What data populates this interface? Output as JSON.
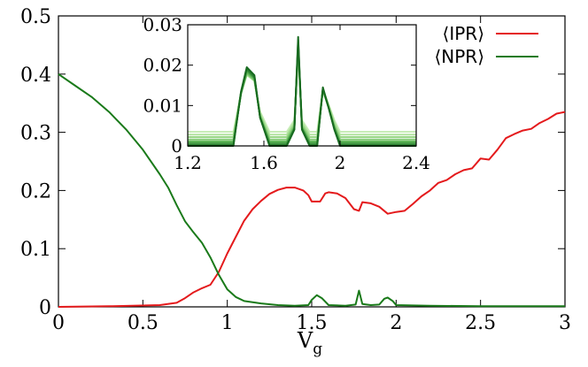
{
  "chart_data": {
    "type": "line",
    "xlabel": "V",
    "xlabel_sub": "g",
    "xlim": [
      0,
      3
    ],
    "ylim": [
      0,
      0.5
    ],
    "xticks": [
      "0",
      "0.5",
      "1",
      "1.5",
      "2",
      "2.5",
      "3"
    ],
    "yticks": [
      "0",
      "0.1",
      "0.2",
      "0.3",
      "0.4",
      "0.5"
    ],
    "legend_position": "top-right",
    "colors": {
      "ipr": "#e41a1c",
      "npr": "#1a7a1a"
    },
    "series": [
      {
        "name": "⟨IPR⟩",
        "color": "#e41a1c",
        "x": [
          0,
          0.3,
          0.6,
          0.7,
          0.75,
          0.8,
          0.85,
          0.9,
          0.95,
          1.0,
          1.05,
          1.1,
          1.15,
          1.2,
          1.25,
          1.3,
          1.35,
          1.4,
          1.45,
          1.48,
          1.5,
          1.55,
          1.58,
          1.6,
          1.65,
          1.7,
          1.75,
          1.78,
          1.8,
          1.85,
          1.9,
          1.95,
          2.0,
          2.05,
          2.1,
          2.15,
          2.2,
          2.25,
          2.3,
          2.35,
          2.4,
          2.45,
          2.5,
          2.55,
          2.6,
          2.65,
          2.7,
          2.75,
          2.8,
          2.85,
          2.9,
          2.95,
          3.0
        ],
        "y": [
          0,
          0.001,
          0.003,
          0.007,
          0.015,
          0.025,
          0.032,
          0.038,
          0.06,
          0.092,
          0.12,
          0.148,
          0.168,
          0.182,
          0.194,
          0.201,
          0.205,
          0.205,
          0.2,
          0.192,
          0.181,
          0.181,
          0.195,
          0.197,
          0.195,
          0.187,
          0.168,
          0.165,
          0.18,
          0.178,
          0.172,
          0.16,
          0.163,
          0.165,
          0.177,
          0.19,
          0.2,
          0.213,
          0.218,
          0.228,
          0.235,
          0.238,
          0.255,
          0.253,
          0.27,
          0.29,
          0.297,
          0.303,
          0.306,
          0.316,
          0.323,
          0.332,
          0.335
        ]
      },
      {
        "name": "⟨NPR⟩",
        "color": "#1a7a1a",
        "x": [
          0,
          0.1,
          0.2,
          0.3,
          0.4,
          0.5,
          0.6,
          0.65,
          0.7,
          0.75,
          0.8,
          0.85,
          0.9,
          0.95,
          1.0,
          1.05,
          1.1,
          1.2,
          1.3,
          1.4,
          1.48,
          1.5,
          1.53,
          1.56,
          1.6,
          1.7,
          1.76,
          1.78,
          1.8,
          1.85,
          1.9,
          1.93,
          1.95,
          1.98,
          2.0,
          2.2,
          2.5,
          3.0
        ],
        "y": [
          0.4,
          0.38,
          0.36,
          0.335,
          0.305,
          0.27,
          0.228,
          0.205,
          0.175,
          0.147,
          0.128,
          0.11,
          0.085,
          0.055,
          0.03,
          0.017,
          0.01,
          0.006,
          0.003,
          0.002,
          0.003,
          0.012,
          0.02,
          0.015,
          0.003,
          0.002,
          0.004,
          0.028,
          0.005,
          0.003,
          0.004,
          0.014,
          0.016,
          0.01,
          0.003,
          0.002,
          0.001,
          0.001
        ]
      }
    ],
    "inset": {
      "type": "line",
      "xlim": [
        1.2,
        2.4
      ],
      "ylim": [
        0,
        0.03
      ],
      "xticks": [
        "1.2",
        "1.6",
        "2",
        "2.4"
      ],
      "yticks": [
        "0",
        "0.01",
        "0.02",
        "0.03"
      ],
      "series_shades": [
        "#c8edb8",
        "#b3e3a0",
        "#9bd889",
        "#80c972",
        "#63b85b",
        "#449d44",
        "#2a8030",
        "#176a1f"
      ],
      "baselines": [
        0.0035,
        0.0028,
        0.0022,
        0.0016,
        0.0011,
        0.0007,
        0.0003,
        0.0
      ],
      "x": [
        1.2,
        1.44,
        1.48,
        1.51,
        1.55,
        1.58,
        1.63,
        1.72,
        1.76,
        1.78,
        1.8,
        1.84,
        1.88,
        1.91,
        1.94,
        1.97,
        2.0,
        2.05,
        2.4
      ],
      "peaks": [
        0,
        0,
        0.0135,
        0.0195,
        0.0175,
        0.007,
        0,
        0,
        0.004,
        0.027,
        0.004,
        0,
        0,
        0.0145,
        0.0095,
        0.004,
        0,
        0,
        0
      ]
    }
  }
}
